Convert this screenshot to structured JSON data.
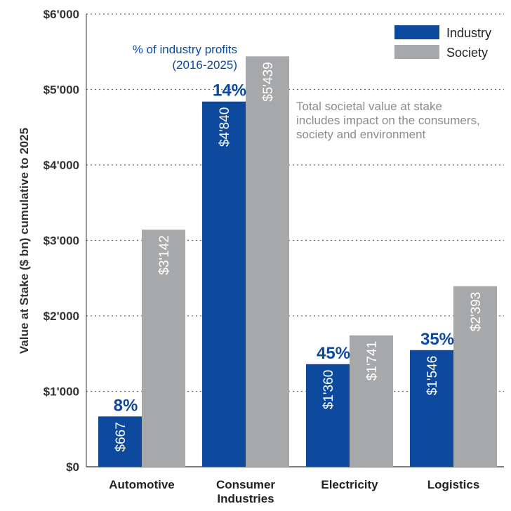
{
  "chart_data": {
    "type": "bar",
    "ylabel": "Value at Stake ($ bn) cumulative to 2025",
    "ylim": [
      0,
      6000
    ],
    "yticks": [
      0,
      1000,
      2000,
      3000,
      4000,
      5000,
      6000
    ],
    "ytick_labels": [
      "$0",
      "$1'000",
      "$2'000",
      "$3'000",
      "$4'000",
      "$5'000",
      "$6'000"
    ],
    "grid": true,
    "legend_position": "top-right",
    "categories": [
      {
        "label_lines": [
          "Automotive"
        ],
        "pct": "8%"
      },
      {
        "label_lines": [
          "Consumer",
          "Industries"
        ],
        "pct": "14%"
      },
      {
        "label_lines": [
          "Electricity"
        ],
        "pct": "45%"
      },
      {
        "label_lines": [
          "Logistics"
        ],
        "pct": "35%"
      }
    ],
    "series": [
      {
        "name": "Industry",
        "color": "#0d4a9e",
        "values": [
          667,
          4840,
          1360,
          1546
        ],
        "labels": [
          "$667",
          "$4'840",
          "$1'360",
          "$1'546"
        ]
      },
      {
        "name": "Society",
        "color": "#a7a8aa",
        "values": [
          3142,
          5439,
          1741,
          2393
        ],
        "labels": [
          "$3'142",
          "$5'439",
          "$1'741",
          "$2'393"
        ]
      }
    ],
    "annotations": {
      "pct_title": [
        "% of industry profits",
        "(2016-2025)"
      ],
      "note": [
        "Total societal value at stake",
        "includes impact on the consumers,",
        "society and environment"
      ]
    }
  }
}
